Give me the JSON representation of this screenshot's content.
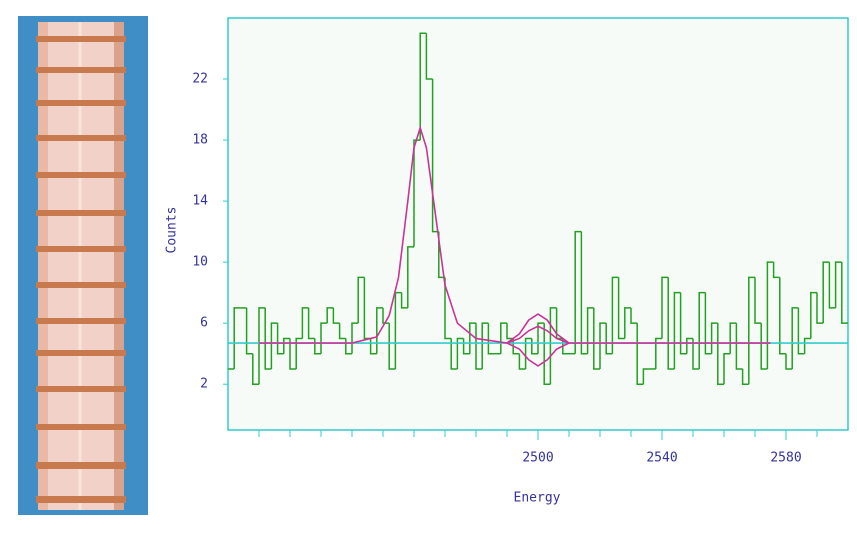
{
  "chart_data": {
    "type": "histogram",
    "xlabel": "Energy",
    "ylabel": "Counts",
    "xlim": [
      2400,
      2600
    ],
    "ylim": [
      -1,
      26
    ],
    "xticks": [
      2500,
      2540,
      2580
    ],
    "xminorticks": [
      2410,
      2420,
      2430,
      2440,
      2450,
      2460,
      2470,
      2480,
      2490,
      2510,
      2520,
      2530,
      2550,
      2560,
      2570,
      2590
    ],
    "yticks": [
      2,
      6,
      10,
      14,
      18,
      22
    ],
    "color": "#22a022",
    "bins": [
      2400,
      2402,
      2404,
      2406,
      2408,
      2410,
      2412,
      2414,
      2416,
      2418,
      2420,
      2422,
      2424,
      2426,
      2428,
      2430,
      2432,
      2434,
      2436,
      2438,
      2440,
      2442,
      2444,
      2446,
      2448,
      2450,
      2452,
      2454,
      2456,
      2458,
      2460,
      2462,
      2464,
      2466,
      2468,
      2470,
      2472,
      2474,
      2476,
      2478,
      2480,
      2482,
      2484,
      2486,
      2488,
      2490,
      2492,
      2494,
      2496,
      2498,
      2500,
      2502,
      2504,
      2506,
      2508,
      2510,
      2512,
      2514,
      2516,
      2518,
      2520,
      2522,
      2524,
      2526,
      2528,
      2530,
      2532,
      2534,
      2536,
      2538,
      2540,
      2542,
      2544,
      2546,
      2548,
      2550,
      2552,
      2554,
      2556,
      2558,
      2560,
      2562,
      2564,
      2566,
      2568,
      2570,
      2572,
      2574,
      2576,
      2578,
      2580,
      2582,
      2584,
      2586,
      2588,
      2590,
      2592,
      2594,
      2596,
      2598,
      2600
    ],
    "values": [
      3,
      7,
      7,
      4,
      2,
      7,
      3,
      6,
      4,
      5,
      3,
      5,
      7,
      5,
      4,
      6,
      7,
      6,
      5,
      4,
      6,
      9,
      5,
      4,
      7,
      6,
      3,
      8,
      7,
      11,
      18,
      25,
      22,
      12,
      9,
      5,
      3,
      5,
      4,
      6,
      3,
      6,
      4,
      4,
      6,
      5,
      4,
      3,
      5,
      4,
      6,
      2,
      7,
      5,
      4,
      4,
      12,
      4,
      7,
      3,
      6,
      4,
      9,
      5,
      7,
      6,
      2,
      3,
      3,
      5,
      9,
      3,
      8,
      4,
      5,
      3,
      8,
      4,
      6,
      2,
      4,
      6,
      3,
      2,
      9,
      6,
      3,
      10,
      9,
      4,
      3,
      7,
      4,
      5,
      8,
      6,
      10,
      7,
      10,
      6
    ],
    "lines": [
      {
        "color": "#33cccc",
        "x": [
          2400,
          2600
        ],
        "values": [
          4.7,
          4.7
        ]
      },
      {
        "color": "#cc3399",
        "x": [
          2410,
          2440,
          2448,
          2452,
          2455,
          2458,
          2460,
          2462,
          2464,
          2467,
          2470,
          2474,
          2480,
          2490,
          2494,
          2497,
          2500,
          2503,
          2506,
          2510,
          2520,
          2575
        ],
        "values": [
          4.7,
          4.7,
          5.1,
          6.5,
          9,
          14,
          17.5,
          18.8,
          17.5,
          13,
          8.5,
          6,
          5,
          4.7,
          5,
          5.5,
          5.8,
          5.5,
          5,
          4.7,
          4.7,
          4.7
        ]
      },
      {
        "color": "#cc3399",
        "x": [
          2490,
          2494,
          2497,
          2500,
          2503,
          2506,
          2510
        ],
        "values": [
          4.7,
          5.3,
          6.2,
          6.6,
          6.2,
          5.3,
          4.7
        ]
      },
      {
        "color": "#cc3399",
        "x": [
          2490,
          2494,
          2497,
          2500,
          2503,
          2506,
          2510
        ],
        "values": [
          4.7,
          4.3,
          3.6,
          3.2,
          3.6,
          4.3,
          4.7
        ]
      }
    ]
  }
}
